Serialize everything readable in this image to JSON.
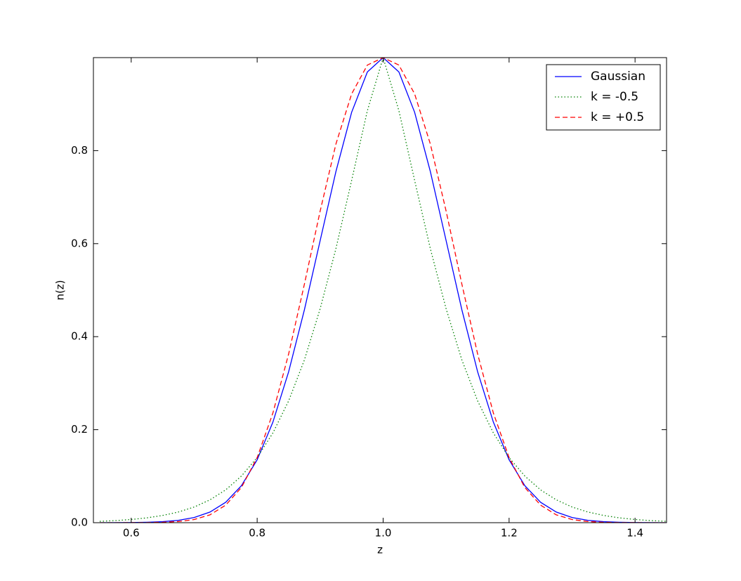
{
  "chart_data": {
    "type": "line",
    "xlabel": "z",
    "ylabel": "n(z)",
    "x": [
      0.55,
      0.575,
      0.6,
      0.625,
      0.65,
      0.675,
      0.7,
      0.725,
      0.75,
      0.775,
      0.8,
      0.825,
      0.85,
      0.875,
      0.9,
      0.925,
      0.95,
      0.975,
      1,
      1.025,
      1.05,
      1.075,
      1.1,
      1.125,
      1.15,
      1.175,
      1.2,
      1.225,
      1.25,
      1.275,
      1.3,
      1.325,
      1.35,
      1.375,
      1.4,
      1.425,
      1.45
    ],
    "series": [
      {
        "name": "Gaussian",
        "color": "#0000ff",
        "linestyle": "solid",
        "values": [
          0,
          0.0001,
          0.0003,
          0.0009,
          0.0022,
          0.0051,
          0.0111,
          0.0228,
          0.0439,
          0.0796,
          0.1353,
          0.2163,
          0.3247,
          0.4578,
          0.6065,
          0.7548,
          0.8825,
          0.9692,
          1,
          0.9692,
          0.8825,
          0.7548,
          0.6065,
          0.4578,
          0.3247,
          0.2163,
          0.1353,
          0.0796,
          0.0439,
          0.0228,
          0.0111,
          0.0051,
          0.0022,
          0.0009,
          0.0003,
          0.0001,
          0
        ]
      },
      {
        "name": "k = -0.5",
        "color": "#008000",
        "linestyle": "dotted",
        "values": [
          0.0029,
          0.0045,
          0.0069,
          0.0104,
          0.0156,
          0.023,
          0.0337,
          0.0491,
          0.0705,
          0.1003,
          0.14,
          0.193,
          0.262,
          0.35,
          0.46,
          0.589,
          0.736,
          0.886,
          1,
          0.886,
          0.736,
          0.589,
          0.46,
          0.35,
          0.262,
          0.193,
          0.14,
          0.1003,
          0.0705,
          0.0491,
          0.0337,
          0.023,
          0.0156,
          0.0104,
          0.0069,
          0.0045,
          0.0029
        ]
      },
      {
        "name": "k = +0.5",
        "color": "#ff0000",
        "linestyle": "dashed",
        "values": [
          0,
          0,
          0.0001,
          0.0002,
          0.0008,
          0.0025,
          0.0068,
          0.0168,
          0.0377,
          0.0757,
          0.14,
          0.236,
          0.363,
          0.513,
          0.67,
          0.814,
          0.922,
          0.984,
          1,
          0.984,
          0.922,
          0.814,
          0.67,
          0.513,
          0.363,
          0.236,
          0.14,
          0.0757,
          0.0377,
          0.0168,
          0.0068,
          0.0025,
          0.0008,
          0.0002,
          0.0001,
          0,
          0
        ]
      }
    ],
    "xlim": [
      0.54,
      1.45
    ],
    "xticks": [
      0.6,
      0.8,
      {
        "value": 1,
        "label": "1.0"
      },
      1.2,
      1.4
    ],
    "ylim": [
      0,
      1
    ],
    "yticks": [
      {
        "value": 0,
        "label": "0.0"
      },
      0.2,
      0.4,
      0.6,
      0.8
    ],
    "legend": "upper right",
    "grid": false
  }
}
